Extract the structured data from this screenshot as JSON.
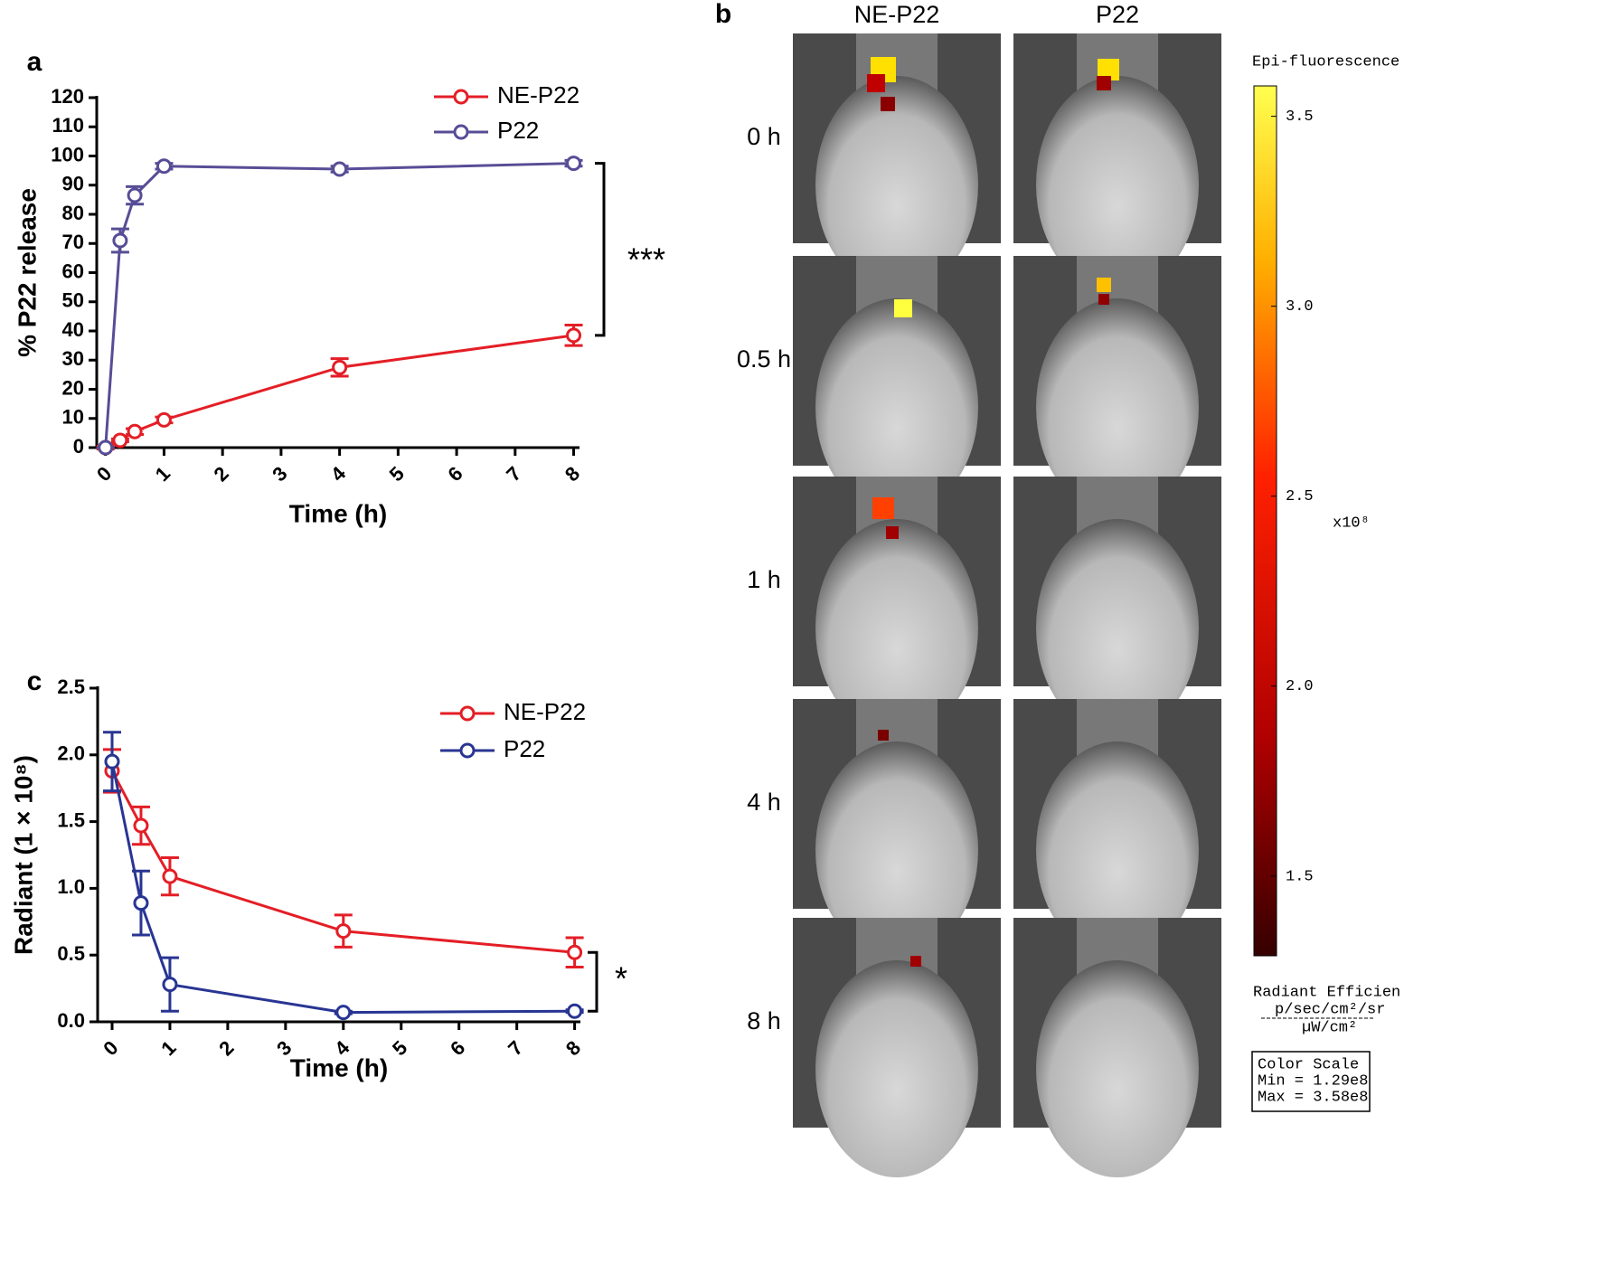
{
  "chart_data": [
    {
      "type": "line",
      "panel": "a",
      "ylabel": "% P22 release",
      "xlabel": "Time (h)",
      "xlim": [
        -0.15,
        8.1
      ],
      "ylim": [
        0,
        120
      ],
      "xticks": [
        0,
        1,
        2,
        3,
        4,
        5,
        6,
        7,
        8
      ],
      "yticks": [
        0,
        10,
        20,
        30,
        40,
        50,
        60,
        70,
        80,
        90,
        100,
        110,
        120
      ],
      "series": [
        {
          "name": "NE-P22",
          "color": "#e41e26",
          "x": [
            0,
            0.25,
            0.5,
            1,
            4,
            8
          ],
          "values": [
            0,
            2.5,
            5.5,
            9.5,
            27.5,
            38.5
          ],
          "errors": [
            0.5,
            0.5,
            1,
            1,
            3,
            3.5
          ]
        },
        {
          "name": "P22",
          "color": "#574d96",
          "x": [
            0,
            0.25,
            0.5,
            1,
            4,
            8
          ],
          "values": [
            0,
            71,
            86.5,
            96.5,
            95.5,
            97.5
          ],
          "errors": [
            0,
            4,
            3,
            1,
            1,
            1
          ]
        }
      ],
      "annotation": "***"
    },
    {
      "type": "line",
      "panel": "c",
      "ylabel": "Radiant (1 × 10⁸)",
      "xlabel": "Time (h)",
      "xlim": [
        -0.25,
        8.1
      ],
      "ylim": [
        0,
        2.5
      ],
      "xticks": [
        0,
        1,
        2,
        3,
        4,
        5,
        6,
        7,
        8
      ],
      "yticks": [
        {
          "value": 0,
          "label": "0.0"
        },
        0.5,
        {
          "value": 1,
          "label": "1.0"
        },
        1.5,
        {
          "value": 2,
          "label": "2.0"
        },
        2.5
      ],
      "series": [
        {
          "name": "NE-P22",
          "color": "#e41e26",
          "x": [
            0,
            0.5,
            1,
            4,
            8
          ],
          "values": [
            1.88,
            1.47,
            1.09,
            0.68,
            0.52
          ],
          "errors": [
            0.16,
            0.14,
            0.14,
            0.12,
            0.11
          ]
        },
        {
          "name": "P22",
          "color": "#283593",
          "x": [
            0,
            0.5,
            1,
            4,
            8
          ],
          "values": [
            1.95,
            0.89,
            0.28,
            0.07,
            0.08
          ],
          "errors": [
            0.22,
            0.24,
            0.2,
            0.01,
            0.01
          ]
        }
      ],
      "annotation": "*"
    }
  ],
  "image_panel": {
    "panel": "b",
    "columns": [
      "NE-P22",
      "P22"
    ],
    "rows": [
      "0 h",
      "0.5 h",
      "1 h",
      "4 h",
      "8 h"
    ],
    "colorbar": {
      "title": "Epi-fluorescence",
      "lim": [
        1.29,
        3.58
      ],
      "ticks": [
        {
          "value": 3.5,
          "label": "3.5"
        },
        {
          "value": 3,
          "label": "3.0"
        },
        {
          "value": 2.5,
          "label": "2.5"
        },
        {
          "value": 2,
          "label": "2.0"
        },
        {
          "value": 1.5,
          "label": "1.5"
        }
      ],
      "multiplier": "x10⁸",
      "unit_title": "Radiant Efficien",
      "unit_numerator": "p/sec/cm²/sr",
      "unit_denominator": "µW/cm²",
      "scale_box": [
        "Color Scale",
        "Min = 1.29e8",
        "Max = 3.58e8"
      ]
    }
  }
}
